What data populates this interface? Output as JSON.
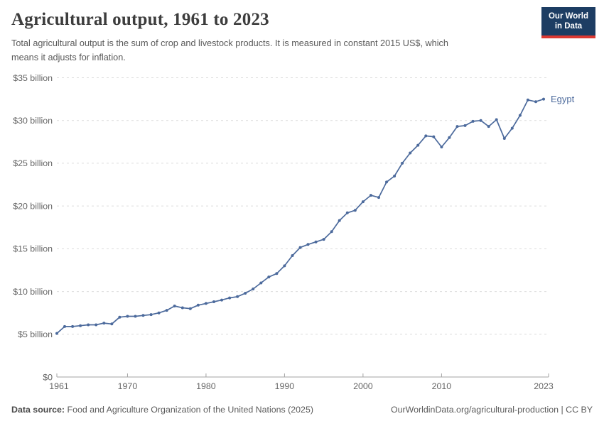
{
  "header": {
    "title": "Agricultural output, 1961 to 2023",
    "subtitle_line1": "Total agricultural output is the sum of crop and livestock products. It is measured in constant 2015 US$, which",
    "subtitle_line2": "means it adjusts for inflation.",
    "logo": {
      "line1": "Our World",
      "line2": "in Data",
      "bg_color": "#1d3d63",
      "stripe_color": "#dc3932"
    }
  },
  "chart_data": {
    "type": "line",
    "title": "Agricultural output, Egypt, 1961 to 2023",
    "unit": "constant 2015 US$, billions",
    "xlim": [
      1961,
      2023
    ],
    "ylim": [
      0,
      35
    ],
    "grid": "horizontal-dashed",
    "legend_position": "end-of-line-label",
    "x_ticks": [
      1961,
      1970,
      1980,
      1990,
      2000,
      2010,
      2023
    ],
    "y_ticks": [
      {
        "value": 0,
        "label": "$0"
      },
      {
        "value": 5,
        "label": "$5 billion"
      },
      {
        "value": 10,
        "label": "$10 billion"
      },
      {
        "value": 15,
        "label": "$15 billion"
      },
      {
        "value": 20,
        "label": "$20 billion"
      },
      {
        "value": 25,
        "label": "$25 billion"
      },
      {
        "value": 30,
        "label": "$30 billion"
      },
      {
        "value": 35,
        "label": "$35 billion"
      }
    ],
    "series": [
      {
        "name": "Egypt",
        "color": "#4C6A9C",
        "years": [
          1961,
          1962,
          1963,
          1964,
          1965,
          1966,
          1967,
          1968,
          1969,
          1970,
          1971,
          1972,
          1973,
          1974,
          1975,
          1976,
          1977,
          1978,
          1979,
          1980,
          1981,
          1982,
          1983,
          1984,
          1985,
          1986,
          1987,
          1988,
          1989,
          1990,
          1991,
          1992,
          1993,
          1994,
          1995,
          1996,
          1997,
          1998,
          1999,
          2000,
          2001,
          2002,
          2003,
          2004,
          2005,
          2006,
          2007,
          2008,
          2009,
          2010,
          2011,
          2012,
          2013,
          2014,
          2015,
          2016,
          2017,
          2018,
          2019,
          2020,
          2021,
          2022,
          2023
        ],
        "values": [
          5.1,
          5.9,
          5.9,
          6.0,
          6.1,
          6.1,
          6.3,
          6.2,
          7.0,
          7.1,
          7.1,
          7.2,
          7.3,
          7.5,
          7.8,
          8.3,
          8.1,
          8.0,
          8.4,
          8.6,
          8.8,
          9.0,
          9.25,
          9.4,
          9.8,
          10.3,
          11.0,
          11.7,
          12.1,
          13.0,
          14.2,
          15.15,
          15.5,
          15.8,
          16.1,
          17.0,
          18.3,
          19.2,
          19.5,
          20.5,
          21.25,
          21.0,
          22.8,
          23.5,
          25.0,
          26.2,
          27.1,
          28.2,
          28.1,
          26.9,
          28.0,
          29.3,
          29.4,
          29.9,
          30.0,
          29.3,
          30.1,
          27.9,
          29.1,
          30.6,
          32.4,
          32.2,
          32.5
        ]
      }
    ],
    "colors": {
      "grid": "#dcdcdc",
      "axis": "#a3a3a3",
      "tick_text": "#666666"
    }
  },
  "footer": {
    "source_label": "Data source:",
    "source_text": " Food and Agriculture Organization of the United Nations (2025)",
    "url_text": "OurWorldinData.org/agricultural-production",
    "divider": " | ",
    "license": "CC BY"
  }
}
